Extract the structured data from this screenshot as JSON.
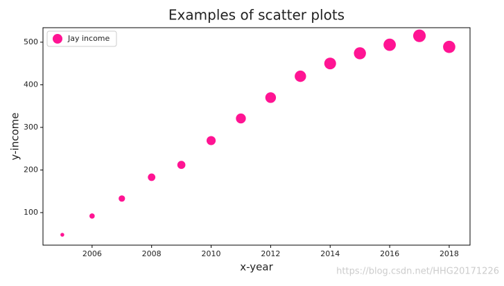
{
  "chart_data": {
    "type": "scatter",
    "title": "Examples of scatter plots",
    "x_label": "x-year",
    "y_label": "y-income",
    "series": [
      {
        "name": "Jay income",
        "color": "#ff1493",
        "x": [
          2005,
          2006,
          2007,
          2008,
          2009,
          2010,
          2011,
          2012,
          2013,
          2014,
          2015,
          2016,
          2017,
          2018
        ],
        "values": [
          48,
          92,
          133,
          183,
          212,
          269,
          321,
          370,
          420,
          450,
          474,
          494,
          515,
          489
        ]
      }
    ],
    "xlim": [
      2004.35,
      2018.7
    ],
    "xticks": [
      2006,
      2008,
      2010,
      2012,
      2014,
      2016,
      2018
    ],
    "ylim": [
      23.6,
      534
    ],
    "yticks": [
      100,
      200,
      300,
      400,
      500
    ],
    "legend": "upper left",
    "grid": false,
    "watermark": "https://blog.csdn.net/HHG20171226"
  }
}
